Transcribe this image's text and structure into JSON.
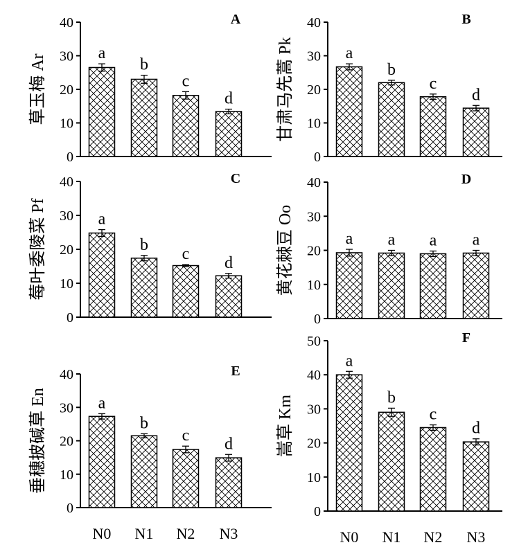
{
  "chart_data": [
    {
      "type": "bar",
      "panel": "A",
      "ylabel": "草玉梅 Ar",
      "categories": [
        "N0",
        "N1",
        "N2",
        "N3"
      ],
      "values": [
        26.5,
        23.0,
        18.2,
        13.4
      ],
      "errors": [
        1.1,
        1.2,
        1.1,
        0.7
      ],
      "letters": [
        "a",
        "b",
        "c",
        "d"
      ],
      "ylim": [
        0,
        40
      ],
      "yticks": [
        0,
        10,
        20,
        30,
        40
      ],
      "show_xlabels": false
    },
    {
      "type": "bar",
      "panel": "B",
      "ylabel": "甘肃马先蒿 Pk",
      "categories": [
        "N0",
        "N1",
        "N2",
        "N3"
      ],
      "values": [
        26.7,
        22.0,
        17.8,
        14.4
      ],
      "errors": [
        0.9,
        0.7,
        0.8,
        0.8
      ],
      "letters": [
        "a",
        "b",
        "c",
        "d"
      ],
      "ylim": [
        0,
        40
      ],
      "yticks": [
        0,
        10,
        20,
        30,
        40
      ],
      "show_xlabels": false
    },
    {
      "type": "bar",
      "panel": "C",
      "ylabel": "莓叶委陵菜 Pf",
      "categories": [
        "N0",
        "N1",
        "N2",
        "N3"
      ],
      "values": [
        24.8,
        17.4,
        15.2,
        12.2
      ],
      "errors": [
        1.0,
        0.8,
        0.3,
        0.7
      ],
      "letters": [
        "a",
        "b",
        "c",
        "d"
      ],
      "ylim": [
        0,
        40
      ],
      "yticks": [
        0,
        10,
        20,
        30,
        40
      ],
      "show_xlabels": false
    },
    {
      "type": "bar",
      "panel": "D",
      "ylabel": "黄花棘豆 Oo",
      "categories": [
        "N0",
        "N1",
        "N2",
        "N3"
      ],
      "values": [
        19.3,
        19.2,
        19.0,
        19.2
      ],
      "errors": [
        1.0,
        0.8,
        0.8,
        0.8
      ],
      "letters": [
        "a",
        "a",
        "a",
        "a"
      ],
      "ylim": [
        0,
        40
      ],
      "yticks": [
        0,
        10,
        20,
        30,
        40
      ],
      "show_xlabels": false
    },
    {
      "type": "bar",
      "panel": "E",
      "ylabel": "垂穗披碱草 En",
      "categories": [
        "N0",
        "N1",
        "N2",
        "N3"
      ],
      "values": [
        27.3,
        21.5,
        17.4,
        14.9
      ],
      "errors": [
        0.8,
        0.6,
        1.0,
        1.0
      ],
      "letters": [
        "a",
        "b",
        "c",
        "d"
      ],
      "ylim": [
        0,
        40
      ],
      "yticks": [
        0,
        10,
        20,
        30,
        40
      ],
      "show_xlabels": true
    },
    {
      "type": "bar",
      "panel": "F",
      "ylabel": "嵩草 Km",
      "categories": [
        "N0",
        "N1",
        "N2",
        "N3"
      ],
      "values": [
        40.0,
        29.0,
        24.5,
        20.3
      ],
      "errors": [
        1.0,
        1.2,
        0.8,
        0.9
      ],
      "letters": [
        "a",
        "b",
        "c",
        "d"
      ],
      "ylim": [
        0,
        50
      ],
      "yticks": [
        0,
        10,
        20,
        30,
        40,
        50
      ],
      "show_xlabels": true
    }
  ]
}
